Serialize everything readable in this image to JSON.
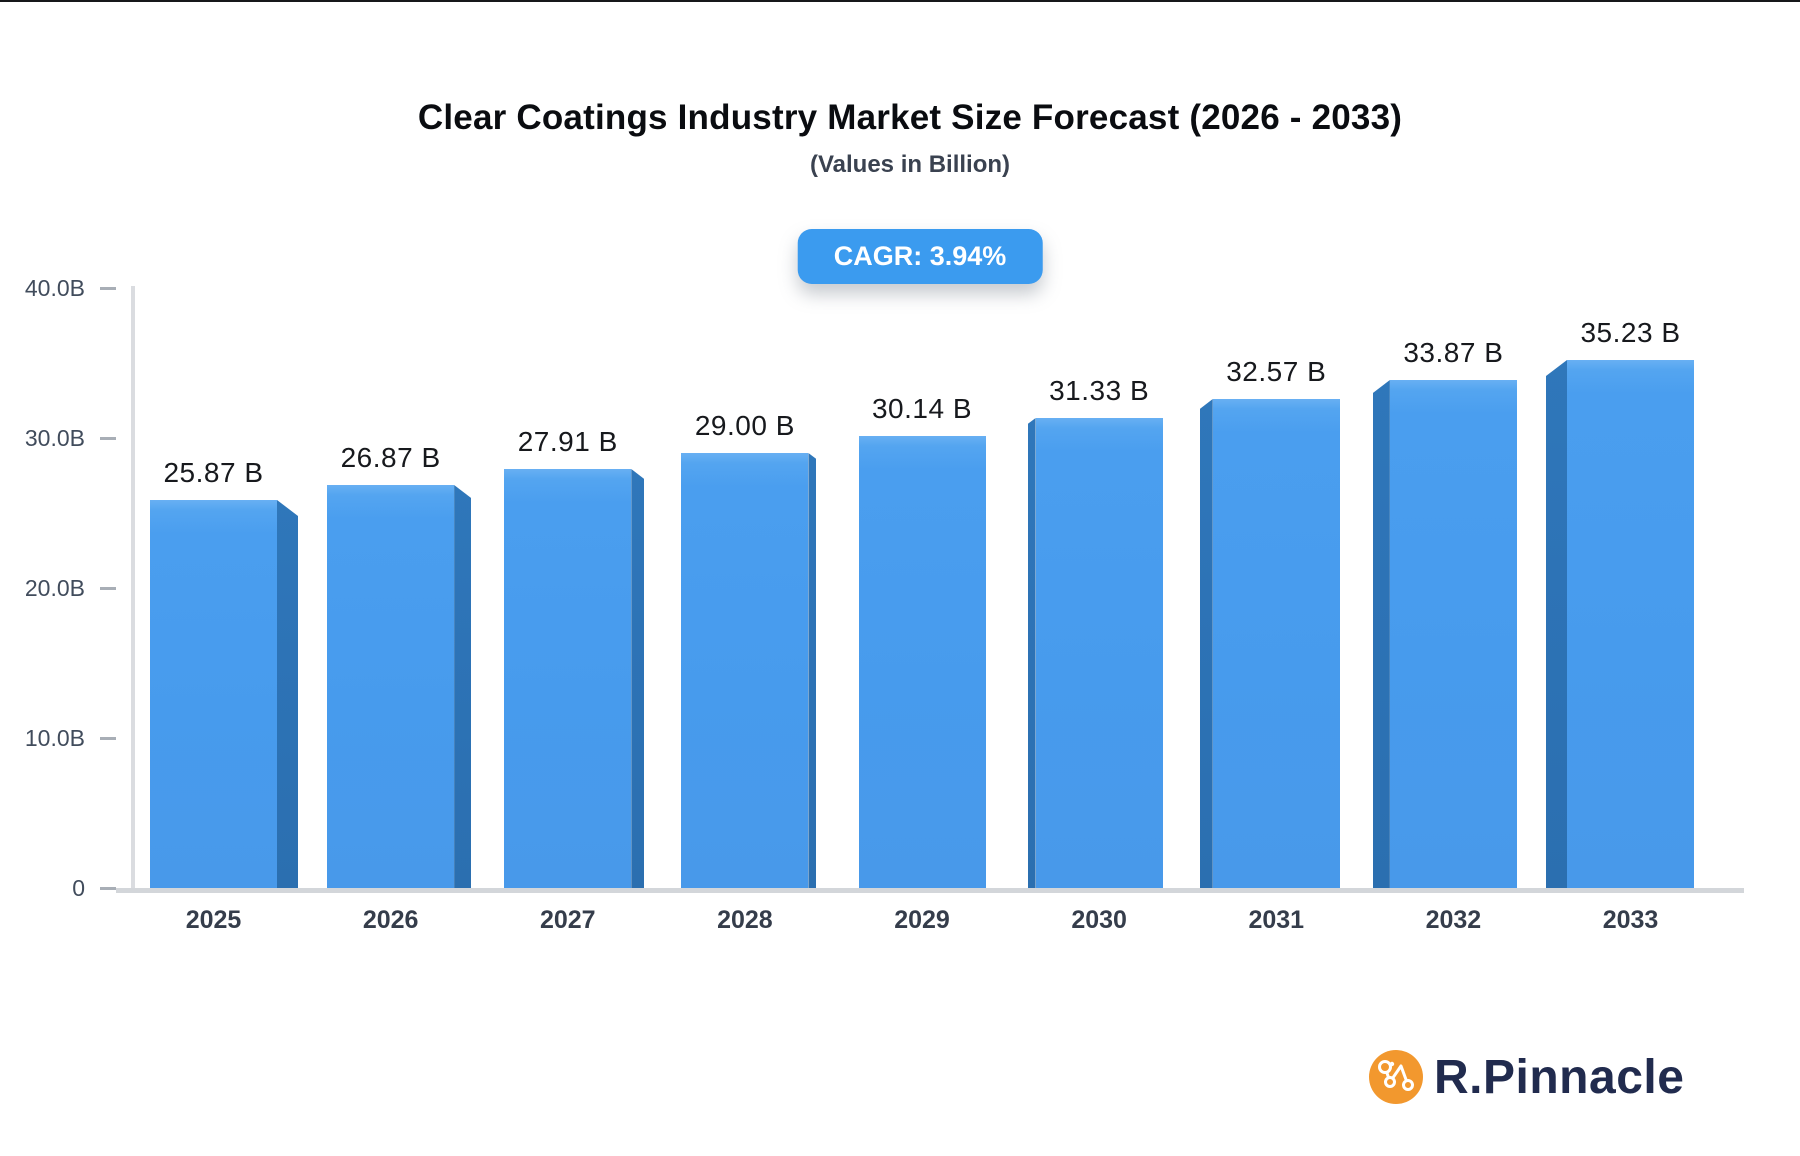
{
  "page": {
    "title": "Clear Coatings Industry Market Size Forecast (2026 - 2033)",
    "subtitle": "(Values in Billion)",
    "cagr_badge": "CAGR: 3.94%"
  },
  "brand": {
    "name": "R.Pinnacle",
    "icon": "network-nodes-icon",
    "icon_color": "#F2982E",
    "text_color": "#212B4E"
  },
  "chart_data": {
    "type": "bar",
    "title": "Clear Coatings Industry Market Size Forecast (2026 - 2033)",
    "subtitle": "(Values in Billion)",
    "annotation": "CAGR: 3.94%",
    "categories": [
      "2025",
      "2026",
      "2027",
      "2028",
      "2029",
      "2030",
      "2031",
      "2032",
      "2033"
    ],
    "values": [
      25.87,
      26.87,
      27.91,
      29.0,
      30.14,
      31.33,
      32.57,
      33.87,
      35.23
    ],
    "value_labels": [
      "25.87 B",
      "26.87 B",
      "27.91 B",
      "29.00 B",
      "30.14 B",
      "31.33 B",
      "32.57 B",
      "33.87 B",
      "35.23 B"
    ],
    "y_ticks": [
      {
        "label": "40.0B",
        "value": 40
      },
      {
        "label": "30.0B",
        "value": 30
      },
      {
        "label": "20.0B",
        "value": 20
      },
      {
        "label": "10.0B",
        "value": 10
      },
      {
        "label": "0",
        "value": 0
      }
    ],
    "ylim": [
      0,
      40
    ],
    "xlabel": "",
    "ylabel": "",
    "grid": false,
    "legend": false,
    "bar_face_color": "#4A9EEF",
    "bar_side_color": "#2D73B6",
    "badge_color": "#3B9BEF",
    "axis_line_color": "#D6D9DD"
  }
}
